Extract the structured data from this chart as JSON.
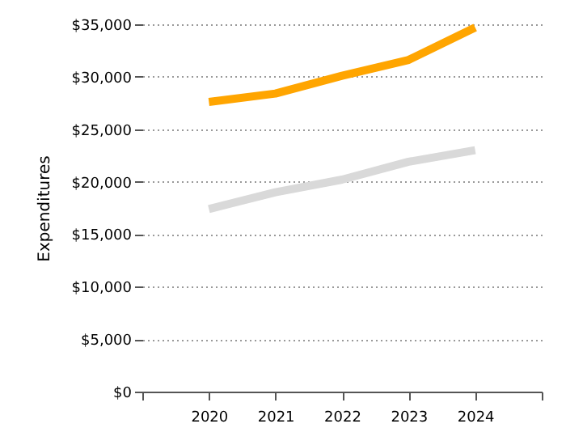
{
  "chart_data": {
    "type": "line",
    "ylabel": "Expenditures",
    "x": [
      2020,
      2021,
      2022,
      2023,
      2024
    ],
    "series": [
      {
        "color": "#ffa500",
        "values": [
          27600,
          28400,
          30100,
          31600,
          34700
        ]
      },
      {
        "color": "#d9d9d9",
        "values": [
          17400,
          19000,
          20200,
          21900,
          23000
        ]
      }
    ],
    "xlim": [
      2019,
      2025
    ],
    "xticks": [
      {
        "value": 2019,
        "label": null
      },
      2020,
      2021,
      2022,
      2023,
      2024,
      {
        "value": 2025,
        "label": null
      }
    ],
    "ylim": [
      0,
      35000
    ],
    "yticks": [
      {
        "value": 0,
        "label": "$0"
      },
      {
        "value": 5000,
        "label": "$5,000"
      },
      {
        "value": 10000,
        "label": "$10,000"
      },
      {
        "value": 15000,
        "label": "$15,000"
      },
      {
        "value": 20000,
        "label": "$20,000"
      },
      {
        "value": 25000,
        "label": "$25,000"
      },
      {
        "value": 30000,
        "label": "$30,000"
      },
      {
        "value": 35000,
        "label": "$35,000"
      }
    ],
    "grid": "y",
    "marker": "none",
    "line_style": "solid"
  }
}
